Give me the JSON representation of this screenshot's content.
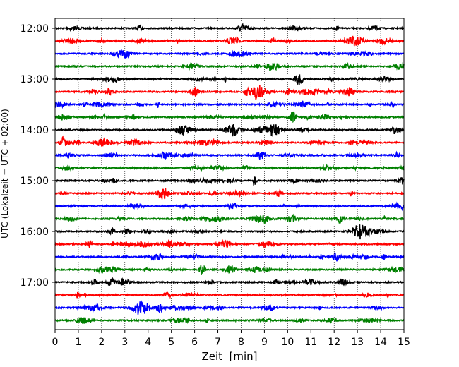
{
  "chart_data": {
    "type": "line",
    "title": "",
    "xlabel": "Zeit  [min]",
    "ylabel": "UTC (Lokalzeit = UTC + 02:00)",
    "xlim": [
      0,
      15
    ],
    "x_ticks": [
      "0",
      "1",
      "2",
      "3",
      "4",
      "5",
      "6",
      "7",
      "8",
      "9",
      "10",
      "11",
      "12",
      "13",
      "14",
      "15"
    ],
    "y_ticks": [
      "12:00",
      "13:00",
      "14:00",
      "15:00",
      "16:00",
      "17:00"
    ],
    "trace_interval_min": 15,
    "start_time": "12:00",
    "trace_count": 24,
    "color_cycle": [
      "#000000",
      "#ff0000",
      "#0000ff",
      "#008000"
    ],
    "grid": "vertical dotted lines at each minute",
    "legend": "none"
  }
}
